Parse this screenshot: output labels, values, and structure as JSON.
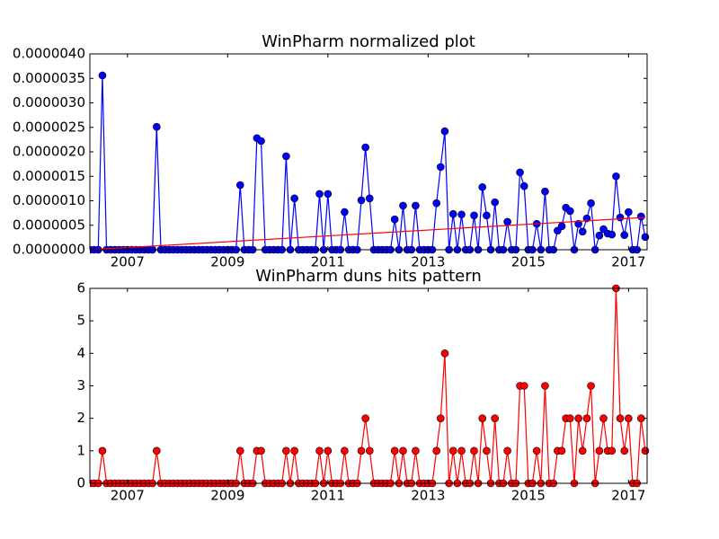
{
  "chart_data": [
    {
      "type": "line",
      "title": "WinPharm normalized plot",
      "x": [
        2006.25,
        2006.333,
        2006.417,
        2006.5,
        2006.583,
        2006.667,
        2006.75,
        2006.833,
        2006.917,
        2007,
        2007.083,
        2007.167,
        2007.25,
        2007.333,
        2007.417,
        2007.5,
        2007.583,
        2007.667,
        2007.75,
        2007.833,
        2007.917,
        2008,
        2008.083,
        2008.167,
        2008.25,
        2008.333,
        2008.417,
        2008.5,
        2008.583,
        2008.667,
        2008.75,
        2008.833,
        2008.917,
        2009,
        2009.083,
        2009.167,
        2009.25,
        2009.333,
        2009.417,
        2009.5,
        2009.583,
        2009.667,
        2009.75,
        2009.833,
        2009.917,
        2010,
        2010.083,
        2010.167,
        2010.25,
        2010.333,
        2010.417,
        2010.5,
        2010.583,
        2010.667,
        2010.75,
        2010.833,
        2010.917,
        2011,
        2011.083,
        2011.167,
        2011.25,
        2011.333,
        2011.417,
        2011.5,
        2011.583,
        2011.667,
        2011.75,
        2011.833,
        2011.917,
        2012,
        2012.083,
        2012.167,
        2012.25,
        2012.333,
        2012.417,
        2012.5,
        2012.583,
        2012.667,
        2012.75,
        2012.833,
        2012.917,
        2013,
        2013.083,
        2013.167,
        2013.25,
        2013.333,
        2013.417,
        2013.5,
        2013.583,
        2013.667,
        2013.75,
        2013.833,
        2013.917,
        2014,
        2014.083,
        2014.167,
        2014.25,
        2014.333,
        2014.417,
        2014.5,
        2014.583,
        2014.667,
        2014.75,
        2014.833,
        2014.917,
        2015,
        2015.083,
        2015.167,
        2015.25,
        2015.333,
        2015.417,
        2015.5,
        2015.583,
        2015.667,
        2015.75,
        2015.833,
        2015.917,
        2016,
        2016.083,
        2016.167,
        2016.25,
        2016.333,
        2016.417,
        2016.5,
        2016.583,
        2016.667,
        2016.75,
        2016.833,
        2016.917,
        2017,
        2017.083,
        2017.167,
        2017.25,
        2017.333
      ],
      "series": [
        {
          "color": "#0000ff",
          "markers": true,
          "values": [
            0,
            0,
            0,
            3.56e-06,
            0,
            0,
            0,
            0,
            0,
            0,
            0,
            0,
            0,
            0,
            0,
            0,
            2.51e-06,
            0,
            0,
            0,
            0,
            0,
            0,
            0,
            0,
            0,
            0,
            0,
            0,
            0,
            0,
            0,
            0,
            0,
            0,
            0,
            1.32e-06,
            0,
            0,
            0,
            2.28e-06,
            2.22e-06,
            0,
            0,
            0,
            0,
            0,
            1.91e-06,
            0,
            1.05e-06,
            0,
            0,
            0,
            0,
            0,
            1.14e-06,
            0,
            1.14e-06,
            0,
            0,
            0,
            7.7e-07,
            0,
            0,
            0,
            1.01e-06,
            2.09e-06,
            1.05e-06,
            0,
            0,
            0,
            0,
            0,
            6.2e-07,
            0,
            9e-07,
            0,
            0,
            9e-07,
            0,
            0,
            0,
            0,
            9.5e-07,
            1.69e-06,
            2.42e-06,
            0,
            7.3e-07,
            0,
            7.2e-07,
            0,
            0,
            7e-07,
            0,
            1.28e-06,
            7e-07,
            0,
            9.7e-07,
            0,
            0,
            5.7e-07,
            0,
            0,
            1.58e-06,
            1.3e-06,
            0,
            0,
            5.3e-07,
            0,
            1.19e-06,
            0,
            0,
            3.9e-07,
            4.8e-07,
            8.6e-07,
            7.9e-07,
            0,
            5.3e-07,
            3.7e-07,
            6.4e-07,
            9.5e-07,
            0,
            2.9e-07,
            4.2e-07,
            3.3e-07,
            3.1e-07,
            1.5e-06,
            6.6e-07,
            3e-07,
            7.7e-07,
            0,
            0,
            6.8e-07,
            2.6e-07
          ]
        },
        {
          "color": "#ff0000",
          "markers": false,
          "x": [
            2006.25,
            2017.333
          ],
          "values": [
            0,
            6.6e-07
          ]
        }
      ],
      "xlim": [
        2006.25,
        2017.37
      ],
      "xticks": [
        2007,
        2009,
        2011,
        2013,
        2015,
        2017
      ],
      "ylim": [
        0,
        4e-06
      ],
      "yticks": [
        {
          "value": 0,
          "label": "0.0000000"
        },
        {
          "value": 5e-07,
          "label": "0.0000005"
        },
        {
          "value": 1e-06,
          "label": "0.0000010"
        },
        {
          "value": 1.5e-06,
          "label": "0.0000015"
        },
        {
          "value": 2e-06,
          "label": "0.0000020"
        },
        {
          "value": 2.5e-06,
          "label": "0.0000025"
        },
        {
          "value": 3e-06,
          "label": "0.0000030"
        },
        {
          "value": 3.5e-06,
          "label": "0.0000035"
        },
        {
          "value": 4e-06,
          "label": "0.0000040"
        }
      ]
    },
    {
      "type": "line",
      "title": "WinPharm duns hits pattern",
      "x": [
        2006.25,
        2006.333,
        2006.417,
        2006.5,
        2006.583,
        2006.667,
        2006.75,
        2006.833,
        2006.917,
        2007,
        2007.083,
        2007.167,
        2007.25,
        2007.333,
        2007.417,
        2007.5,
        2007.583,
        2007.667,
        2007.75,
        2007.833,
        2007.917,
        2008,
        2008.083,
        2008.167,
        2008.25,
        2008.333,
        2008.417,
        2008.5,
        2008.583,
        2008.667,
        2008.75,
        2008.833,
        2008.917,
        2009,
        2009.083,
        2009.167,
        2009.25,
        2009.333,
        2009.417,
        2009.5,
        2009.583,
        2009.667,
        2009.75,
        2009.833,
        2009.917,
        2010,
        2010.083,
        2010.167,
        2010.25,
        2010.333,
        2010.417,
        2010.5,
        2010.583,
        2010.667,
        2010.75,
        2010.833,
        2010.917,
        2011,
        2011.083,
        2011.167,
        2011.25,
        2011.333,
        2011.417,
        2011.5,
        2011.583,
        2011.667,
        2011.75,
        2011.833,
        2011.917,
        2012,
        2012.083,
        2012.167,
        2012.25,
        2012.333,
        2012.417,
        2012.5,
        2012.583,
        2012.667,
        2012.75,
        2012.833,
        2012.917,
        2013,
        2013.083,
        2013.167,
        2013.25,
        2013.333,
        2013.417,
        2013.5,
        2013.583,
        2013.667,
        2013.75,
        2013.833,
        2013.917,
        2014,
        2014.083,
        2014.167,
        2014.25,
        2014.333,
        2014.417,
        2014.5,
        2014.583,
        2014.667,
        2014.75,
        2014.833,
        2014.917,
        2015,
        2015.083,
        2015.167,
        2015.25,
        2015.333,
        2015.417,
        2015.5,
        2015.583,
        2015.667,
        2015.75,
        2015.833,
        2015.917,
        2016,
        2016.083,
        2016.167,
        2016.25,
        2016.333,
        2016.417,
        2016.5,
        2016.583,
        2016.667,
        2016.75,
        2016.833,
        2016.917,
        2017,
        2017.083,
        2017.167,
        2017.25,
        2017.333
      ],
      "series": [
        {
          "color": "#ff0000",
          "markers": true,
          "values": [
            0,
            0,
            0,
            1,
            0,
            0,
            0,
            0,
            0,
            0,
            0,
            0,
            0,
            0,
            0,
            0,
            1,
            0,
            0,
            0,
            0,
            0,
            0,
            0,
            0,
            0,
            0,
            0,
            0,
            0,
            0,
            0,
            0,
            0,
            0,
            0,
            1,
            0,
            0,
            0,
            1,
            1,
            0,
            0,
            0,
            0,
            0,
            1,
            0,
            1,
            0,
            0,
            0,
            0,
            0,
            1,
            0,
            1,
            0,
            0,
            0,
            1,
            0,
            0,
            0,
            1,
            2,
            1,
            0,
            0,
            0,
            0,
            0,
            1,
            0,
            1,
            0,
            0,
            1,
            0,
            0,
            0,
            0,
            1,
            2,
            4,
            0,
            1,
            0,
            1,
            0,
            0,
            1,
            0,
            2,
            1,
            0,
            2,
            0,
            0,
            1,
            0,
            0,
            3,
            3,
            0,
            0,
            1,
            0,
            3,
            0,
            0,
            1,
            1,
            2,
            2,
            0,
            2,
            1,
            2,
            3,
            0,
            1,
            2,
            1,
            1,
            6,
            2,
            1,
            2,
            0,
            0,
            2,
            1
          ]
        }
      ],
      "xlim": [
        2006.25,
        2017.37
      ],
      "xticks": [
        2007,
        2009,
        2011,
        2013,
        2015,
        2017
      ],
      "ylim": [
        0,
        6
      ],
      "yticks": [
        0,
        1,
        2,
        3,
        4,
        5,
        6
      ]
    }
  ]
}
